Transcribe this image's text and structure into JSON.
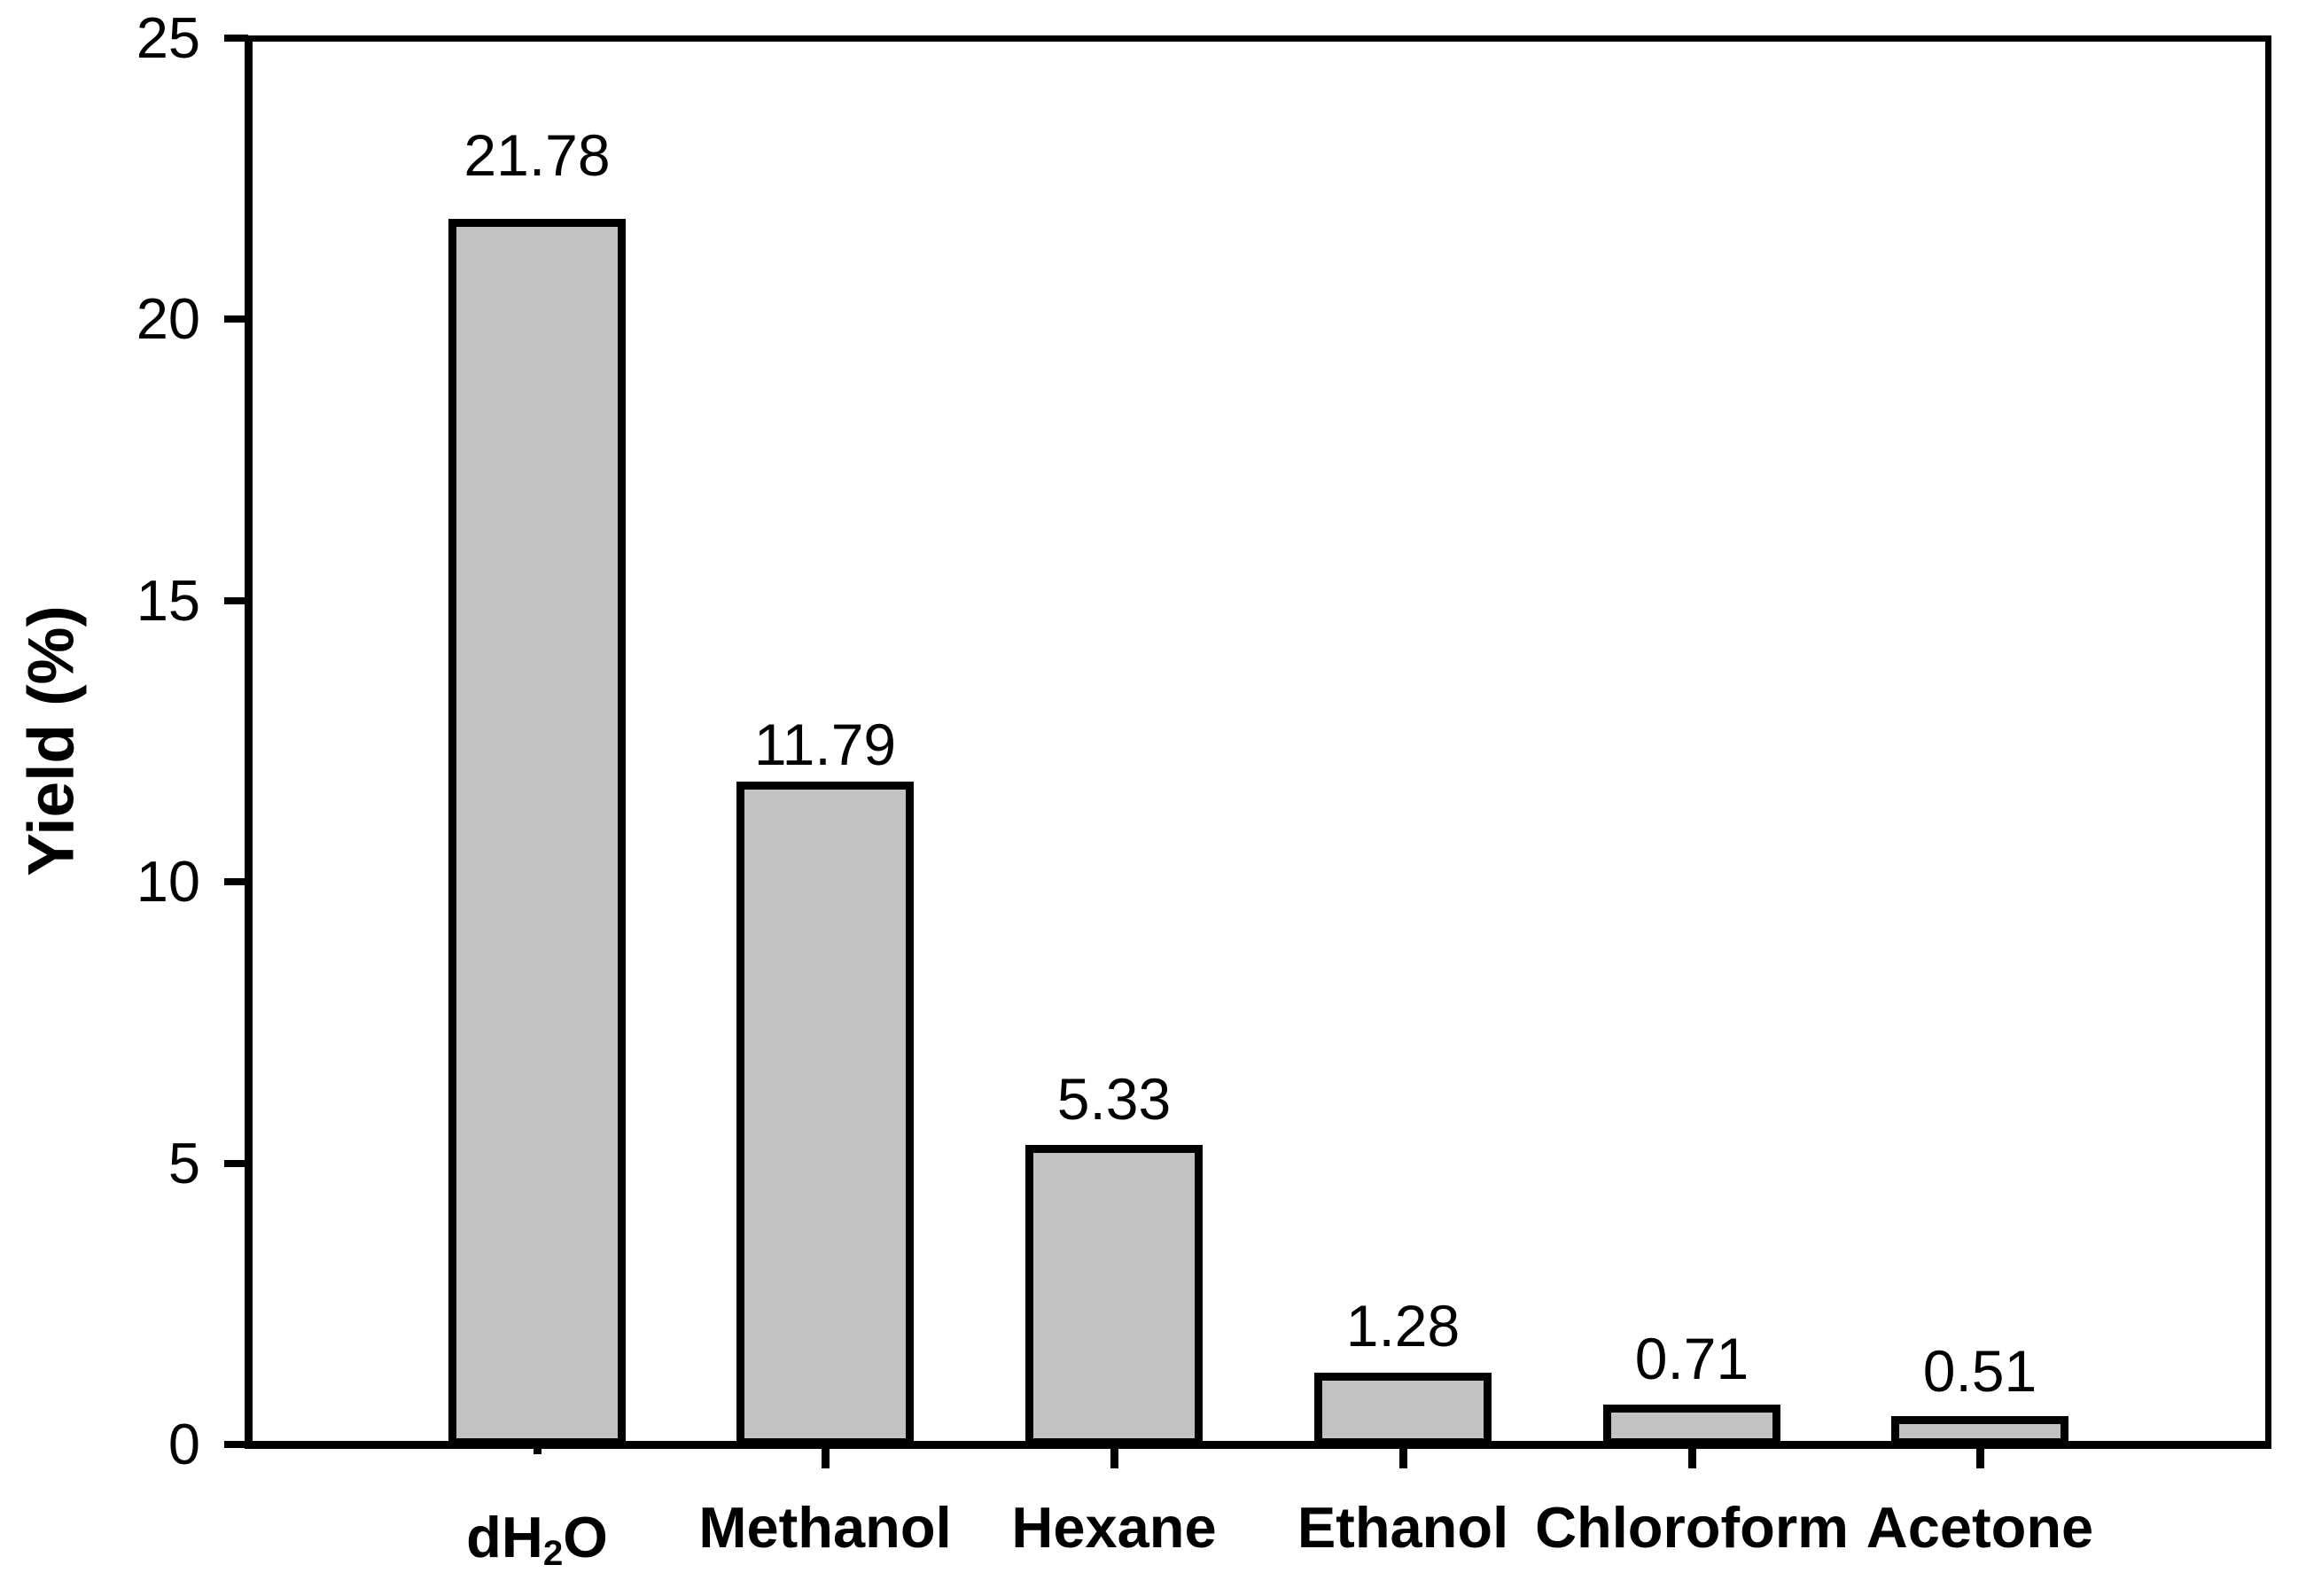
{
  "chart_data": {
    "type": "bar",
    "title": "",
    "xlabel": "",
    "ylabel": "Yield (%)",
    "ylim": [
      0,
      25
    ],
    "yticks": [
      "0",
      "5",
      "10",
      "15",
      "20",
      "25"
    ],
    "grid": false,
    "legend": null,
    "categories": [
      "dH2O",
      "Methanol",
      "Hexane",
      "Ethanol",
      "Chloroform",
      "Acetone"
    ],
    "categories_display": [
      {
        "pre": "dH",
        "sub": "2",
        "post": "O"
      },
      {
        "pre": "Methanol",
        "sub": "",
        "post": ""
      },
      {
        "pre": "Hexane",
        "sub": "",
        "post": ""
      },
      {
        "pre": "Ethanol",
        "sub": "",
        "post": ""
      },
      {
        "pre": "Chloroform",
        "sub": "",
        "post": ""
      },
      {
        "pre": "Acetone",
        "sub": "",
        "post": ""
      }
    ],
    "values": [
      21.78,
      11.79,
      5.33,
      1.28,
      0.71,
      0.51
    ],
    "value_labels": [
      "21.78",
      "11.79",
      "5.33",
      "1.28",
      "0.71",
      "0.51"
    ],
    "bar_fill_color": "#c2c2c2",
    "bar_border_color": "#000000",
    "axis_color": "#000000",
    "text_color": "#000000"
  }
}
